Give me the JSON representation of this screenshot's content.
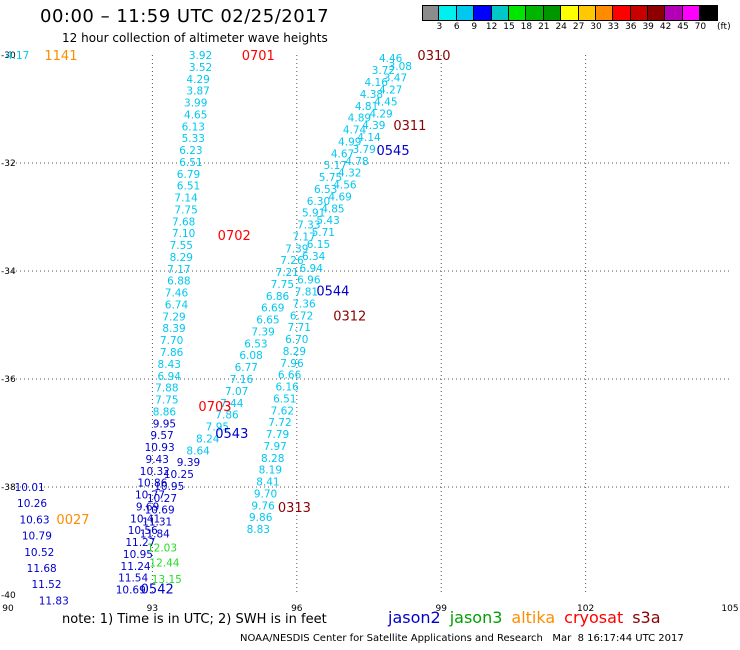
{
  "header": {
    "title": "00:00 – 11:59 UTC 02/25/2017",
    "subtitle": "12 hour collection of altimeter wave heights"
  },
  "color_scale": {
    "unit_label": "(ft)",
    "labels": [
      "3",
      "6",
      "9",
      "12",
      "15",
      "18",
      "21",
      "24",
      "27",
      "30",
      "33",
      "36",
      "39",
      "42",
      "45",
      "70"
    ],
    "colors": [
      "#8c8c8c",
      "#00f0f0",
      "#00c8f0",
      "#0000ff",
      "#00c8c8",
      "#00e600",
      "#00b400",
      "#009600",
      "#ffff00",
      "#ffc800",
      "#ff8c00",
      "#ff0000",
      "#c80000",
      "#8c0000",
      "#b400b4",
      "#ff00ff",
      "#000000"
    ]
  },
  "footnote": "note: 1) Time is in UTC; 2) SWH is in feet",
  "satellites": [
    {
      "name": "jason2",
      "color": "#0000cd"
    },
    {
      "name": "jason3",
      "color": "#00a000"
    },
    {
      "name": "altika",
      "color": "#ff8c00"
    },
    {
      "name": "cryosat",
      "color": "#ff0000"
    },
    {
      "name": "s3a",
      "color": "#8b0000"
    }
  ],
  "credit": "NOAA/NESDIS Center for Satellite Applications and Research   Mar  8 16:17:44 UTC 2017",
  "chart_data": {
    "type": "scatter",
    "xlim": [
      90,
      105
    ],
    "ylim": [
      -40,
      -30
    ],
    "x_ticks": [
      90,
      93,
      96,
      99,
      102,
      105
    ],
    "y_ticks": [
      -30,
      -32,
      -34,
      -36,
      -38,
      -40
    ],
    "grid": true,
    "colors": {
      "light": "#00c8f0",
      "blue": "#0000cd",
      "green": "#22dd22",
      "orange": "#ff8c00",
      "red": "#ff0000",
      "darkred": "#8b0000"
    },
    "points": [
      {
        "x": 90.2,
        "y": -30.0,
        "v": "4.17",
        "c": "light"
      },
      {
        "x": 94.0,
        "y": -30.0,
        "v": "3.92",
        "c": "light"
      },
      {
        "x": 94.0,
        "y": -30.22,
        "v": "3.52",
        "c": "light"
      },
      {
        "x": 93.95,
        "y": -30.44,
        "v": "4.29",
        "c": "light"
      },
      {
        "x": 93.95,
        "y": -30.66,
        "v": "3.87",
        "c": "light"
      },
      {
        "x": 93.9,
        "y": -30.88,
        "v": "3.99",
        "c": "light"
      },
      {
        "x": 93.9,
        "y": -31.1,
        "v": "4.65",
        "c": "light"
      },
      {
        "x": 93.85,
        "y": -31.32,
        "v": "6.13",
        "c": "light"
      },
      {
        "x": 93.85,
        "y": -31.54,
        "v": "5.33",
        "c": "light"
      },
      {
        "x": 93.8,
        "y": -31.76,
        "v": "6.23",
        "c": "light"
      },
      {
        "x": 93.8,
        "y": -31.98,
        "v": "6.51",
        "c": "light"
      },
      {
        "x": 93.75,
        "y": -32.2,
        "v": "6.79",
        "c": "light"
      },
      {
        "x": 93.75,
        "y": -32.42,
        "v": "6.51",
        "c": "light"
      },
      {
        "x": 93.7,
        "y": -32.64,
        "v": "7.14",
        "c": "light"
      },
      {
        "x": 93.7,
        "y": -32.86,
        "v": "7.75",
        "c": "light"
      },
      {
        "x": 93.65,
        "y": -33.08,
        "v": "7.68",
        "c": "light"
      },
      {
        "x": 93.65,
        "y": -33.3,
        "v": "7.10",
        "c": "light"
      },
      {
        "x": 93.6,
        "y": -33.52,
        "v": "7.55",
        "c": "light"
      },
      {
        "x": 93.6,
        "y": -33.74,
        "v": "8.29",
        "c": "light"
      },
      {
        "x": 93.55,
        "y": -33.96,
        "v": "7.17",
        "c": "light"
      },
      {
        "x": 93.55,
        "y": -34.18,
        "v": "6.88",
        "c": "light"
      },
      {
        "x": 93.5,
        "y": -34.4,
        "v": "7.46",
        "c": "light"
      },
      {
        "x": 93.5,
        "y": -34.62,
        "v": "6.74",
        "c": "light"
      },
      {
        "x": 93.45,
        "y": -34.84,
        "v": "7.29",
        "c": "light"
      },
      {
        "x": 93.45,
        "y": -35.06,
        "v": "8.39",
        "c": "light"
      },
      {
        "x": 93.4,
        "y": -35.28,
        "v": "7.70",
        "c": "light"
      },
      {
        "x": 93.4,
        "y": -35.5,
        "v": "7.86",
        "c": "light"
      },
      {
        "x": 93.35,
        "y": -35.72,
        "v": "8.43",
        "c": "light"
      },
      {
        "x": 93.35,
        "y": -35.94,
        "v": "6.94",
        "c": "light"
      },
      {
        "x": 93.3,
        "y": -36.16,
        "v": "7.88",
        "c": "light"
      },
      {
        "x": 93.3,
        "y": -36.38,
        "v": "7.75",
        "c": "light"
      },
      {
        "x": 93.25,
        "y": -36.6,
        "v": "8.86",
        "c": "light"
      },
      {
        "x": 93.25,
        "y": -36.82,
        "v": "9.95",
        "c": "blue"
      },
      {
        "x": 93.2,
        "y": -37.04,
        "v": "9.57",
        "c": "blue"
      },
      {
        "x": 93.15,
        "y": -37.26,
        "v": "10.93",
        "c": "blue"
      },
      {
        "x": 93.1,
        "y": -37.48,
        "v": "9.43",
        "c": "blue"
      },
      {
        "x": 93.05,
        "y": -37.7,
        "v": "10.32",
        "c": "blue"
      },
      {
        "x": 93.0,
        "y": -37.92,
        "v": "10.86",
        "c": "blue"
      },
      {
        "x": 92.95,
        "y": -38.14,
        "v": "10.77",
        "c": "blue"
      },
      {
        "x": 92.9,
        "y": -38.36,
        "v": "9.69",
        "c": "blue"
      },
      {
        "x": 92.85,
        "y": -38.58,
        "v": "10.41",
        "c": "blue"
      },
      {
        "x": 92.8,
        "y": -38.8,
        "v": "10.56",
        "c": "blue"
      },
      {
        "x": 92.75,
        "y": -39.02,
        "v": "11.27",
        "c": "blue"
      },
      {
        "x": 92.7,
        "y": -39.24,
        "v": "10.95",
        "c": "blue"
      },
      {
        "x": 92.65,
        "y": -39.46,
        "v": "11.24",
        "c": "blue"
      },
      {
        "x": 92.6,
        "y": -39.68,
        "v": "11.54",
        "c": "blue"
      },
      {
        "x": 92.55,
        "y": -39.9,
        "v": "10.69",
        "c": "blue"
      },
      {
        "x": 90.45,
        "y": -38.0,
        "v": "10.01",
        "c": "blue"
      },
      {
        "x": 90.5,
        "y": -38.3,
        "v": "10.26",
        "c": "blue"
      },
      {
        "x": 90.55,
        "y": -38.6,
        "v": "10.63",
        "c": "blue"
      },
      {
        "x": 90.6,
        "y": -38.9,
        "v": "10.79",
        "c": "blue"
      },
      {
        "x": 90.65,
        "y": -39.2,
        "v": "10.52",
        "c": "blue"
      },
      {
        "x": 90.7,
        "y": -39.5,
        "v": "11.68",
        "c": "blue"
      },
      {
        "x": 90.8,
        "y": -39.8,
        "v": "11.52",
        "c": "blue"
      },
      {
        "x": 90.95,
        "y": -40.1,
        "v": "11.83",
        "c": "blue"
      },
      {
        "x": 93.2,
        "y": -39.12,
        "v": "12.03",
        "c": "green"
      },
      {
        "x": 93.25,
        "y": -39.4,
        "v": "12.44",
        "c": "green"
      },
      {
        "x": 93.3,
        "y": -39.7,
        "v": "13.15",
        "c": "green"
      },
      {
        "x": 94.55,
        "y": -36.66,
        "v": "7.86",
        "c": "light"
      },
      {
        "x": 94.35,
        "y": -36.88,
        "v": "7.95",
        "c": "light"
      },
      {
        "x": 94.15,
        "y": -37.1,
        "v": "8.24",
        "c": "light"
      },
      {
        "x": 93.95,
        "y": -37.32,
        "v": "8.64",
        "c": "light"
      },
      {
        "x": 93.75,
        "y": -37.54,
        "v": "9.39",
        "c": "blue"
      },
      {
        "x": 93.55,
        "y": -37.76,
        "v": "10.25",
        "c": "blue"
      },
      {
        "x": 93.35,
        "y": -37.98,
        "v": "10.95",
        "c": "blue"
      },
      {
        "x": 93.2,
        "y": -38.2,
        "v": "10.27",
        "c": "blue"
      },
      {
        "x": 93.15,
        "y": -38.42,
        "v": "10.69",
        "c": "blue"
      },
      {
        "x": 93.1,
        "y": -38.64,
        "v": "11.31",
        "c": "blue"
      },
      {
        "x": 93.05,
        "y": -38.86,
        "v": "11.84",
        "c": "blue"
      },
      {
        "x": 94.65,
        "y": -36.44,
        "v": "7.44",
        "c": "light"
      },
      {
        "x": 94.75,
        "y": -36.22,
        "v": "7.07",
        "c": "light"
      },
      {
        "x": 94.85,
        "y": -36.0,
        "v": "7.16",
        "c": "light"
      },
      {
        "x": 94.95,
        "y": -35.78,
        "v": "6.77",
        "c": "light"
      },
      {
        "x": 95.05,
        "y": -35.56,
        "v": "6.08",
        "c": "light"
      },
      {
        "x": 95.15,
        "y": -35.34,
        "v": "6.53",
        "c": "light"
      },
      {
        "x": 95.3,
        "y": -35.12,
        "v": "7.39",
        "c": "light"
      },
      {
        "x": 95.4,
        "y": -34.9,
        "v": "6.65",
        "c": "light"
      },
      {
        "x": 95.5,
        "y": -34.68,
        "v": "6.69",
        "c": "light"
      },
      {
        "x": 95.6,
        "y": -34.46,
        "v": "6.86",
        "c": "light"
      },
      {
        "x": 95.7,
        "y": -34.24,
        "v": "7.75",
        "c": "light"
      },
      {
        "x": 95.8,
        "y": -34.02,
        "v": "7.21",
        "c": "light"
      },
      {
        "x": 95.9,
        "y": -33.8,
        "v": "7.26",
        "c": "light"
      },
      {
        "x": 96.0,
        "y": -33.58,
        "v": "7.39",
        "c": "light"
      },
      {
        "x": 96.15,
        "y": -33.36,
        "v": "7.17",
        "c": "light"
      },
      {
        "x": 96.25,
        "y": -33.14,
        "v": "7.33",
        "c": "light"
      },
      {
        "x": 96.35,
        "y": -32.92,
        "v": "5.91",
        "c": "light"
      },
      {
        "x": 96.45,
        "y": -32.7,
        "v": "6.30",
        "c": "light"
      },
      {
        "x": 96.6,
        "y": -32.48,
        "v": "6.53",
        "c": "light"
      },
      {
        "x": 96.7,
        "y": -32.26,
        "v": "5.75",
        "c": "light"
      },
      {
        "x": 96.8,
        "y": -32.04,
        "v": "5.17",
        "c": "light"
      },
      {
        "x": 96.95,
        "y": -31.82,
        "v": "4.67",
        "c": "light"
      },
      {
        "x": 97.1,
        "y": -31.6,
        "v": "4.99",
        "c": "light"
      },
      {
        "x": 97.2,
        "y": -31.38,
        "v": "4.74",
        "c": "light"
      },
      {
        "x": 97.3,
        "y": -31.16,
        "v": "4.89",
        "c": "light"
      },
      {
        "x": 97.45,
        "y": -30.94,
        "v": "4.81",
        "c": "light"
      },
      {
        "x": 97.55,
        "y": -30.72,
        "v": "4.38",
        "c": "light"
      },
      {
        "x": 97.65,
        "y": -30.5,
        "v": "4.16",
        "c": "light"
      },
      {
        "x": 97.8,
        "y": -30.28,
        "v": "3.72",
        "c": "light"
      },
      {
        "x": 97.95,
        "y": -30.06,
        "v": "4.46",
        "c": "light"
      },
      {
        "x": 98.15,
        "y": -30.2,
        "v": "3.08",
        "c": "light"
      },
      {
        "x": 98.05,
        "y": -30.42,
        "v": "3.47",
        "c": "light"
      },
      {
        "x": 97.95,
        "y": -30.64,
        "v": "4.27",
        "c": "light"
      },
      {
        "x": 97.85,
        "y": -30.86,
        "v": "4.45",
        "c": "light"
      },
      {
        "x": 97.75,
        "y": -31.08,
        "v": "4.29",
        "c": "light"
      },
      {
        "x": 97.6,
        "y": -31.3,
        "v": "4.39",
        "c": "light"
      },
      {
        "x": 97.5,
        "y": -31.52,
        "v": "4.14",
        "c": "light"
      },
      {
        "x": 97.4,
        "y": -31.74,
        "v": "3.79",
        "c": "light"
      },
      {
        "x": 97.25,
        "y": -31.96,
        "v": "4.78",
        "c": "light"
      },
      {
        "x": 97.1,
        "y": -32.18,
        "v": "4.32",
        "c": "light"
      },
      {
        "x": 97.0,
        "y": -32.4,
        "v": "4.56",
        "c": "light"
      },
      {
        "x": 96.9,
        "y": -32.62,
        "v": "4.69",
        "c": "light"
      },
      {
        "x": 96.75,
        "y": -32.84,
        "v": "4.85",
        "c": "light"
      },
      {
        "x": 96.65,
        "y": -33.06,
        "v": "5.43",
        "c": "light"
      },
      {
        "x": 96.55,
        "y": -33.28,
        "v": "5.71",
        "c": "light"
      },
      {
        "x": 96.45,
        "y": -33.5,
        "v": "6.15",
        "c": "light"
      },
      {
        "x": 96.35,
        "y": -33.72,
        "v": "6.34",
        "c": "light"
      },
      {
        "x": 96.3,
        "y": -33.94,
        "v": "6.94",
        "c": "light"
      },
      {
        "x": 96.25,
        "y": -34.16,
        "v": "6.96",
        "c": "light"
      },
      {
        "x": 96.2,
        "y": -34.38,
        "v": "7.81",
        "c": "light"
      },
      {
        "x": 96.15,
        "y": -34.6,
        "v": "7.36",
        "c": "light"
      },
      {
        "x": 96.1,
        "y": -34.82,
        "v": "6.72",
        "c": "light"
      },
      {
        "x": 96.05,
        "y": -35.04,
        "v": "7.71",
        "c": "light"
      },
      {
        "x": 96.0,
        "y": -35.26,
        "v": "6.70",
        "c": "light"
      },
      {
        "x": 95.95,
        "y": -35.48,
        "v": "8.29",
        "c": "light"
      },
      {
        "x": 95.9,
        "y": -35.7,
        "v": "7.96",
        "c": "light"
      },
      {
        "x": 95.85,
        "y": -35.92,
        "v": "6.66",
        "c": "light"
      },
      {
        "x": 95.8,
        "y": -36.14,
        "v": "6.16",
        "c": "light"
      },
      {
        "x": 95.75,
        "y": -36.36,
        "v": "6.51",
        "c": "light"
      },
      {
        "x": 95.7,
        "y": -36.58,
        "v": "7.62",
        "c": "light"
      },
      {
        "x": 95.65,
        "y": -36.8,
        "v": "7.72",
        "c": "light"
      },
      {
        "x": 95.6,
        "y": -37.02,
        "v": "7.79",
        "c": "light"
      },
      {
        "x": 95.55,
        "y": -37.24,
        "v": "7.97",
        "c": "light"
      },
      {
        "x": 95.5,
        "y": -37.46,
        "v": "8.28",
        "c": "light"
      },
      {
        "x": 95.45,
        "y": -37.68,
        "v": "8.19",
        "c": "light"
      },
      {
        "x": 95.4,
        "y": -37.9,
        "v": "8.41",
        "c": "light"
      },
      {
        "x": 95.35,
        "y": -38.12,
        "v": "9.70",
        "c": "light"
      },
      {
        "x": 95.3,
        "y": -38.34,
        "v": "9.76",
        "c": "light"
      },
      {
        "x": 95.25,
        "y": -38.56,
        "v": "9.86",
        "c": "light"
      },
      {
        "x": 95.2,
        "y": -38.78,
        "v": "8.83",
        "c": "light"
      }
    ],
    "time_labels": [
      {
        "x": 91.1,
        "y": -30.0,
        "t": "1141",
        "c": "orange"
      },
      {
        "x": 95.2,
        "y": -30.0,
        "t": "0701",
        "c": "red"
      },
      {
        "x": 98.85,
        "y": -30.0,
        "t": "0310",
        "c": "darkred"
      },
      {
        "x": 98.35,
        "y": -31.3,
        "t": "0311",
        "c": "darkred"
      },
      {
        "x": 98.0,
        "y": -31.76,
        "t": "0545",
        "c": "blue"
      },
      {
        "x": 94.7,
        "y": -33.33,
        "t": "0702",
        "c": "red"
      },
      {
        "x": 96.75,
        "y": -34.36,
        "t": "0544",
        "c": "blue"
      },
      {
        "x": 97.1,
        "y": -34.82,
        "t": "0312",
        "c": "darkred"
      },
      {
        "x": 94.3,
        "y": -36.5,
        "t": "0703",
        "c": "red"
      },
      {
        "x": 94.65,
        "y": -37.0,
        "t": "0543",
        "c": "blue"
      },
      {
        "x": 95.95,
        "y": -38.37,
        "t": "0313",
        "c": "darkred"
      },
      {
        "x": 91.35,
        "y": -38.59,
        "t": "0027",
        "c": "orange"
      },
      {
        "x": 93.1,
        "y": -39.88,
        "t": "0542",
        "c": "blue"
      }
    ]
  }
}
